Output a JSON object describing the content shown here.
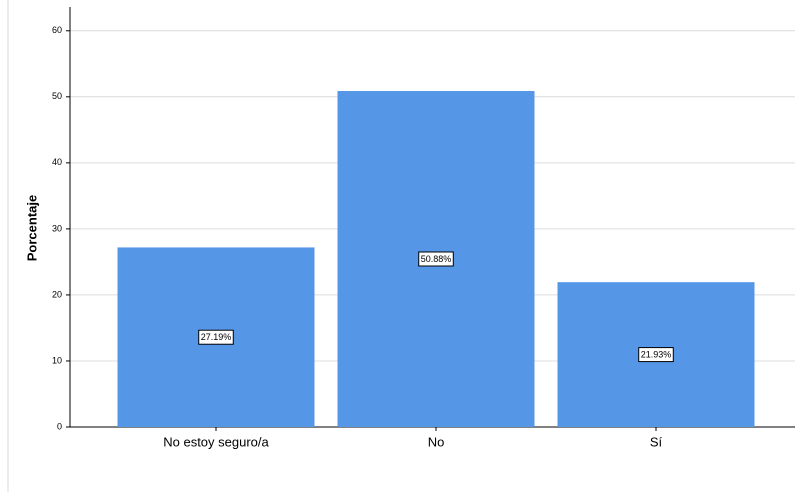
{
  "chart_data": {
    "type": "bar",
    "y_label": "Porcentaje",
    "categories": [
      "No estoy seguro/a",
      "No",
      "Sí"
    ],
    "values": [
      27.19,
      50.88,
      21.93
    ],
    "value_labels": [
      "27.19%",
      "50.88%",
      "21.93%"
    ],
    "color": "#5596e6",
    "ylim": [
      0,
      63.6
    ],
    "yticks": [
      0,
      10,
      20,
      30,
      40,
      50,
      60
    ],
    "grid": true
  }
}
